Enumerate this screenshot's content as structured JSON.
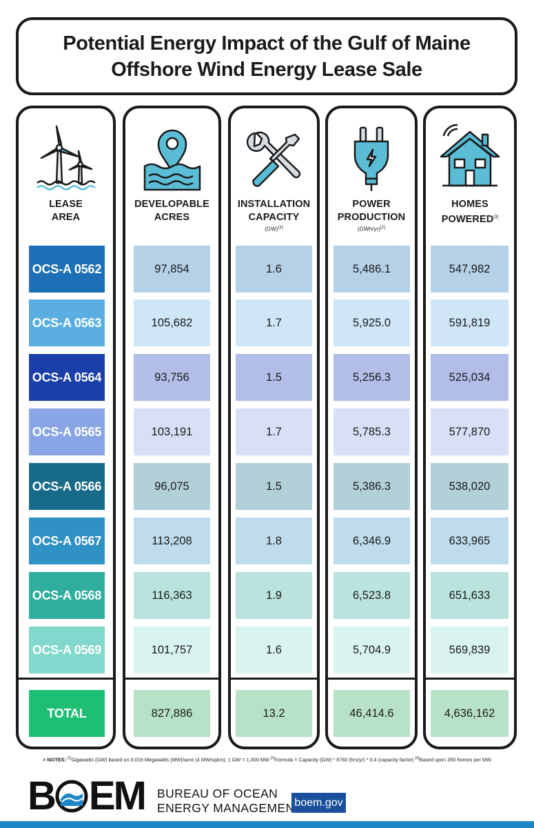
{
  "title": {
    "line1": "Potential Energy Impact of the Gulf of Maine",
    "line2": "Offshore Wind Energy Lease Sale"
  },
  "columns": {
    "lease": {
      "line1": "LEASE",
      "line2": "AREA",
      "icon": "wind-turbine-icon"
    },
    "acres": {
      "line1": "DEVELOPABLE",
      "line2": "ACRES",
      "icon": "location-pin-water-icon"
    },
    "capacity": {
      "line1": "INSTALLATION",
      "line2": "CAPACITY",
      "unit": "(GW)",
      "note": "[1]",
      "icon": "wrench-screwdriver-icon"
    },
    "power": {
      "line1": "POWER",
      "line2": "PRODUCTION",
      "unit": "(GWh/yr)",
      "note": "[2]",
      "icon": "electric-plug-icon"
    },
    "homes": {
      "line1": "HOMES",
      "line2": "POWERED",
      "note": "[3]",
      "icon": "smart-home-icon"
    }
  },
  "rows": [
    {
      "lease": "OCS-A 0562",
      "acres": "97,854",
      "capacity": "1.6",
      "power": "5,486.1",
      "homes": "547,982",
      "lease_color": "#1d70b5",
      "tint": "#b4d1e8"
    },
    {
      "lease": "OCS-A 0563",
      "acres": "105,682",
      "capacity": "1.7",
      "power": "5,925.0",
      "homes": "591,819",
      "lease_color": "#5aaee2",
      "tint": "#cfe6f6"
    },
    {
      "lease": "OCS-A 0564",
      "acres": "93,756",
      "capacity": "1.5",
      "power": "5,256.3",
      "homes": "525,034",
      "lease_color": "#1b3fa8",
      "tint": "#b2bde8"
    },
    {
      "lease": "OCS-A 0565",
      "acres": "103,191",
      "capacity": "1.7",
      "power": "5,785.3",
      "homes": "577,870",
      "lease_color": "#8aa5e6",
      "tint": "#d8e0f7"
    },
    {
      "lease": "OCS-A 0566",
      "acres": "96,075",
      "capacity": "1.5",
      "power": "5,386.3",
      "homes": "538,020",
      "lease_color": "#186b88",
      "tint": "#b2d0d8"
    },
    {
      "lease": "OCS-A 0567",
      "acres": "113,208",
      "capacity": "1.8",
      "power": "6,346.9",
      "homes": "633,965",
      "lease_color": "#2f91c4",
      "tint": "#bedcec"
    },
    {
      "lease": "OCS-A 0568",
      "acres": "116,363",
      "capacity": "1.9",
      "power": "6,523.8",
      "homes": "651,633",
      "lease_color": "#2fae9e",
      "tint": "#b9e3dc"
    },
    {
      "lease": "OCS-A 0569",
      "acres": "101,757",
      "capacity": "1.6",
      "power": "5,704.9",
      "homes": "569,839",
      "lease_color": "#82d8cc",
      "tint": "#d9f3ef"
    }
  ],
  "total": {
    "lease": "TOTAL",
    "acres": "827,886",
    "capacity": "13.2",
    "power": "46,414.6",
    "homes": "4,636,162",
    "lease_color": "#1dbf73",
    "tint": "#b8e2c7"
  },
  "notes": {
    "prefix": "> NOTES:",
    "n1_mark": "[1]",
    "n1": "Gigawatts (GW) based on 0.016 Megawatts (MW)/acre (4 MW/sqkm); 1 GW = 1,000 MW",
    "n2_mark": "[2]",
    "n2": "Formula = Capacity (GW) * 8760 (hrs/yr) * 0.4 (capacity factor)",
    "n3_mark": "[3]",
    "n3": "Based upon 350 homes per MW"
  },
  "footer": {
    "logo_b": "B",
    "logo_em": "EM",
    "logo_alt": "BOEM",
    "agency_line1": "BUREAU OF OCEAN",
    "agency_line2": "ENERGY MANAGEMENT",
    "url": "boem.gov"
  },
  "colors": {
    "outline": "#1a1a1a",
    "icon_fill": "#5bbcd6",
    "footer_bar": "#1e86c8",
    "url_badge": "#1a4f9c"
  }
}
